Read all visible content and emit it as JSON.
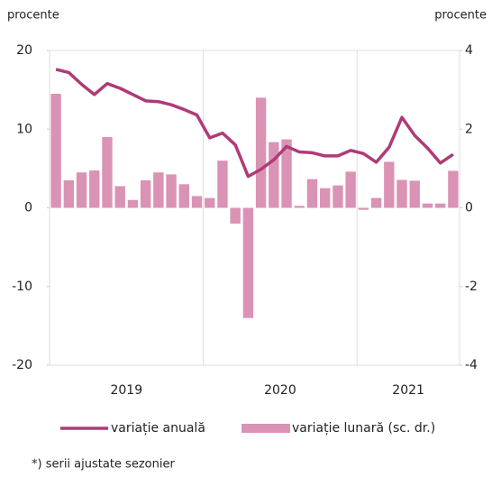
{
  "chart_data": {
    "type": "bar_line",
    "y_label": "procente",
    "y2_label": "procente",
    "categories": [
      null,
      null,
      null,
      null,
      null,
      null,
      null,
      null,
      null,
      null,
      null,
      null,
      null,
      null,
      null,
      null,
      null,
      null,
      null,
      null,
      null,
      null,
      null,
      null,
      null,
      null,
      null,
      null,
      null,
      null,
      null,
      null
    ],
    "x_groups": [
      {
        "label": "2019",
        "count": 12
      },
      {
        "label": "2020",
        "count": 12
      },
      {
        "label": "2021",
        "count": 8
      }
    ],
    "series": [
      {
        "name": "variație anuală",
        "type": "line",
        "color": "#b03a78",
        "axis": "y",
        "values": [
          17.6,
          17.2,
          15.7,
          14.4,
          15.8,
          15.2,
          14.4,
          13.6,
          13.5,
          13.1,
          12.5,
          11.8,
          8.9,
          9.5,
          8.0,
          4.0,
          4.9,
          6.1,
          7.8,
          7.1,
          7.0,
          6.6,
          6.6,
          7.3,
          6.9,
          5.8,
          7.7,
          11.5,
          9.2,
          7.6,
          5.7,
          6.8
        ]
      },
      {
        "name": "variație lunară (sc. dr.)",
        "type": "bar",
        "color": "#da92b5",
        "axis": "y2",
        "values": [
          2.9,
          0.7,
          0.9,
          0.95,
          1.8,
          0.55,
          0.2,
          0.7,
          0.9,
          0.85,
          0.6,
          0.3,
          0.25,
          1.2,
          -0.4,
          -2.8,
          2.8,
          1.67,
          1.74,
          0.05,
          0.73,
          0.5,
          0.57,
          0.92,
          -0.05,
          0.25,
          1.17,
          0.71,
          0.69,
          0.11,
          0.11,
          0.94
        ]
      }
    ],
    "ylim": [
      -20,
      20
    ],
    "yticks": [
      20,
      10,
      0,
      -10,
      -20
    ],
    "y2lim": [
      -4,
      4
    ],
    "y2ticks": [
      4,
      2,
      0,
      -2,
      -4
    ],
    "footnote": "*) serii ajustate sezonier"
  }
}
